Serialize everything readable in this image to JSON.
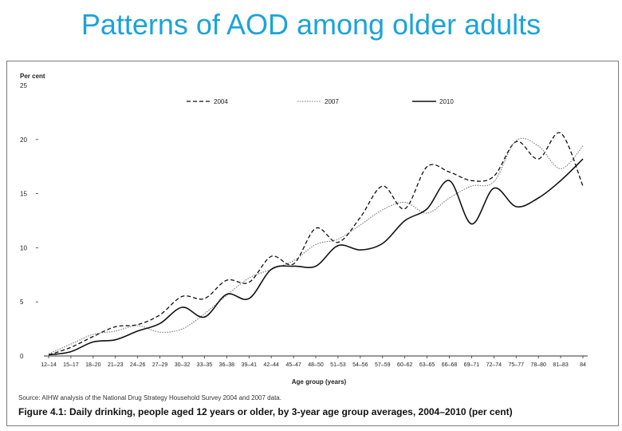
{
  "slide": {
    "title": "Patterns of AOD among older adults"
  },
  "figure": {
    "source": "Source: AIHW analysis of the National Drug Strategy Household Survey 2004 and 2007 data.",
    "caption": "Figure 4.1: Daily drinking, people aged 12 years or older, by 3-year age group averages, 2004–2010 (per cent)"
  },
  "chart_data": {
    "type": "line",
    "ylabel": "Per cent",
    "xlabel": "Age group (years)",
    "ylim": [
      0,
      25
    ],
    "yticks": [
      0,
      5,
      10,
      15,
      20,
      25
    ],
    "grid": false,
    "legend_position": "top",
    "categories": [
      "12–14",
      "15–17",
      "18–20",
      "21–23",
      "24–26",
      "27–29",
      "30–32",
      "33–35",
      "36–38",
      "39–41",
      "42–44",
      "45–47",
      "48–50",
      "51–53",
      "54–56",
      "57–59",
      "60–62",
      "63–65",
      "66–68",
      "69–71",
      "72–74",
      "75–77",
      "78–80",
      "81–83",
      "84"
    ],
    "series": [
      {
        "name": "2004",
        "style": "dashed",
        "color": "#111111",
        "values": [
          0.1,
          0.8,
          1.8,
          2.7,
          2.9,
          3.8,
          5.5,
          5.3,
          7.0,
          6.8,
          9.2,
          8.5,
          11.8,
          10.5,
          12.8,
          15.7,
          13.6,
          17.5,
          17.0,
          16.2,
          16.6,
          19.8,
          18.2,
          20.6,
          15.7
        ]
      },
      {
        "name": "2007",
        "style": "dotted",
        "color": "#777777",
        "values": [
          0.2,
          1.1,
          2.0,
          2.3,
          2.8,
          2.2,
          2.5,
          3.9,
          5.6,
          7.2,
          8.0,
          8.8,
          10.3,
          10.8,
          12.1,
          13.5,
          14.2,
          13.2,
          14.6,
          15.7,
          16.1,
          19.9,
          19.4,
          17.3,
          19.4
        ]
      },
      {
        "name": "2010",
        "style": "solid",
        "color": "#111111",
        "values": [
          0.1,
          0.4,
          1.3,
          1.5,
          2.3,
          3.0,
          4.5,
          3.6,
          5.7,
          5.3,
          8.0,
          8.3,
          8.3,
          10.2,
          9.8,
          10.4,
          12.5,
          13.6,
          16.2,
          12.2,
          15.5,
          13.8,
          14.6,
          16.2,
          18.2
        ]
      }
    ]
  }
}
